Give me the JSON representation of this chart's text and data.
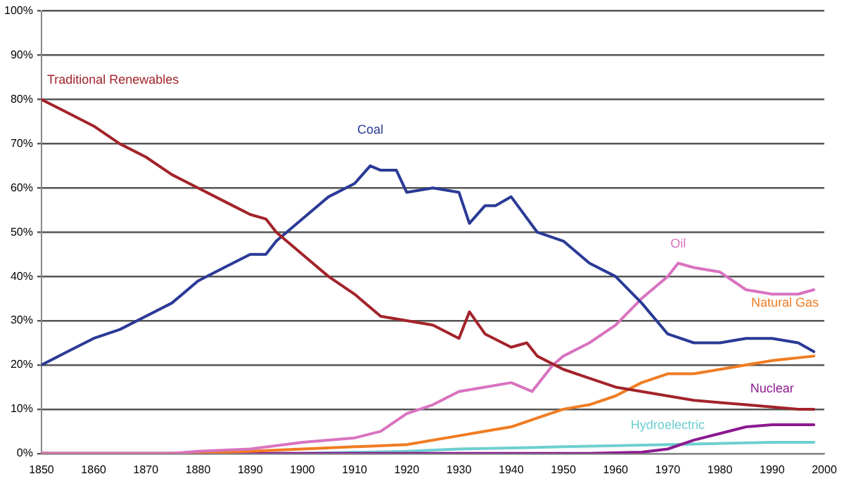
{
  "chart_data": {
    "type": "line",
    "xlim": [
      1850,
      2000
    ],
    "xticks": [
      1850,
      1860,
      1870,
      1880,
      1890,
      1900,
      1910,
      1920,
      1930,
      1940,
      1950,
      1960,
      1970,
      1980,
      1990,
      2000
    ],
    "ylim": [
      0,
      100
    ],
    "yticks": [
      {
        "value": 0,
        "label": "0%"
      },
      {
        "value": 10,
        "label": "10%"
      },
      {
        "value": 20,
        "label": "20%"
      },
      {
        "value": 30,
        "label": "30%"
      },
      {
        "value": 40,
        "label": "40%"
      },
      {
        "value": 50,
        "label": "50%"
      },
      {
        "value": 60,
        "label": "60%"
      },
      {
        "value": 70,
        "label": "70%"
      },
      {
        "value": 80,
        "label": "80%"
      },
      {
        "value": 90,
        "label": "90%"
      },
      {
        "value": 100,
        "label": "100%"
      }
    ],
    "grid": "y",
    "legend": false,
    "marker": "none",
    "line_style": "solid",
    "series": [
      {
        "name": "Traditional Renewables",
        "color": "#a3232a",
        "x": [
          1850,
          1855,
          1860,
          1865,
          1870,
          1875,
          1880,
          1885,
          1890,
          1893,
          1895,
          1900,
          1905,
          1910,
          1915,
          1920,
          1925,
          1930,
          1932,
          1935,
          1940,
          1943,
          1945,
          1950,
          1955,
          1960,
          1965,
          1970,
          1975,
          1980,
          1985,
          1990,
          1995,
          1998
        ],
        "values": [
          80,
          77,
          74,
          70,
          67,
          63,
          60,
          57,
          54,
          53,
          50,
          45,
          40,
          36,
          31,
          30,
          29,
          26,
          32,
          27,
          24,
          25,
          22,
          19,
          17,
          15,
          14,
          13,
          12,
          11.5,
          11,
          10.5,
          10,
          10
        ]
      },
      {
        "name": "Coal",
        "color": "#2a3a96",
        "x": [
          1850,
          1855,
          1860,
          1865,
          1870,
          1875,
          1880,
          1885,
          1890,
          1893,
          1895,
          1900,
          1905,
          1910,
          1913,
          1915,
          1918,
          1920,
          1925,
          1930,
          1932,
          1935,
          1937,
          1940,
          1945,
          1950,
          1955,
          1960,
          1965,
          1970,
          1975,
          1980,
          1985,
          1990,
          1995,
          1998
        ],
        "values": [
          20,
          23,
          26,
          28,
          31,
          34,
          39,
          42,
          45,
          45,
          48,
          53,
          58,
          61,
          65,
          64,
          64,
          59,
          60,
          59,
          52,
          56,
          56,
          58,
          50,
          48,
          43,
          40,
          34,
          27,
          25,
          25,
          26,
          26,
          25,
          23
        ]
      },
      {
        "name": "Oil",
        "color": "#d873c0",
        "x": [
          1850,
          1875,
          1880,
          1890,
          1900,
          1910,
          1915,
          1920,
          1925,
          1930,
          1935,
          1940,
          1944,
          1948,
          1950,
          1955,
          1960,
          1965,
          1970,
          1972,
          1975,
          1980,
          1985,
          1990,
          1995,
          1998
        ],
        "values": [
          0,
          0,
          0.5,
          1,
          2.5,
          3.5,
          5,
          9,
          11,
          14,
          15,
          16,
          14,
          20,
          22,
          25,
          29,
          35,
          40,
          43,
          42,
          41,
          37,
          36,
          36,
          37
        ]
      },
      {
        "name": "Natural Gas",
        "color": "#f07c22",
        "x": [
          1850,
          1880,
          1890,
          1900,
          1910,
          1920,
          1930,
          1935,
          1940,
          1945,
          1950,
          1955,
          1960,
          1965,
          1970,
          1975,
          1980,
          1985,
          1990,
          1998
        ],
        "values": [
          0,
          0,
          0.5,
          1,
          1.5,
          2,
          4,
          5,
          6,
          8,
          10,
          11,
          13,
          16,
          18,
          18,
          19,
          20,
          21,
          22
        ]
      },
      {
        "name": "Nuclear",
        "color": "#8b1a8f",
        "x": [
          1850,
          1955,
          1965,
          1970,
          1975,
          1980,
          1985,
          1990,
          1998
        ],
        "values": [
          0,
          0,
          0.3,
          1,
          3,
          4.5,
          6,
          6.5,
          6.5
        ]
      },
      {
        "name": "Hydroelectric",
        "color": "#6ecfd0",
        "x": [
          1850,
          1900,
          1920,
          1930,
          1950,
          1970,
          1990,
          1998
        ],
        "values": [
          0,
          0,
          0.5,
          1,
          1.5,
          2,
          2.5,
          2.5
        ]
      }
    ]
  }
}
